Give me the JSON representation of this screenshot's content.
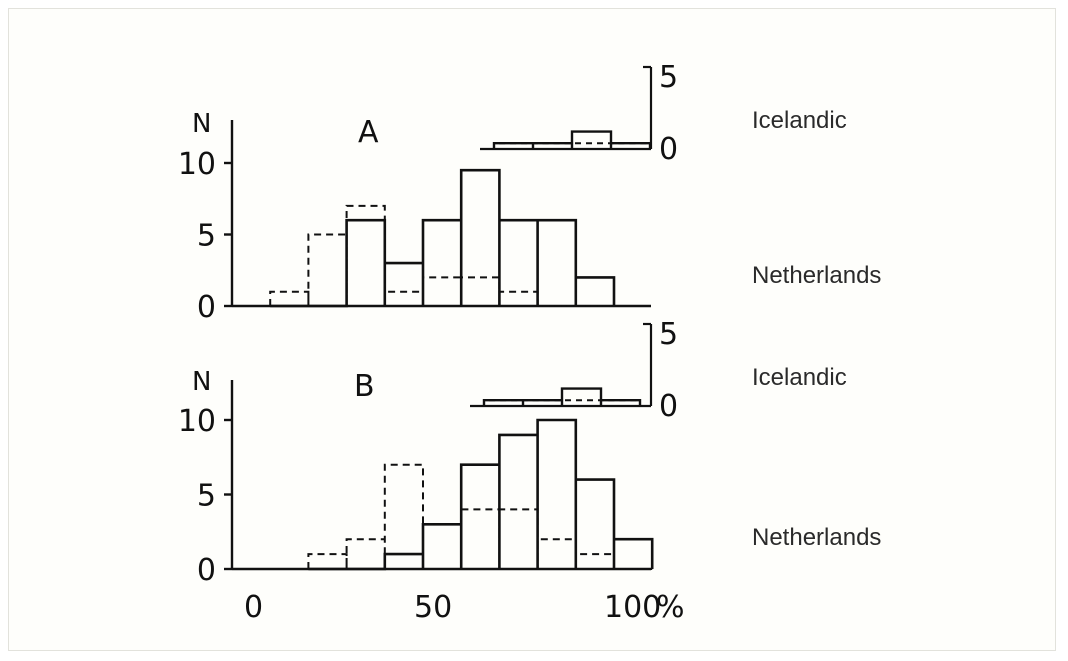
{
  "chart_data": [
    {
      "type": "histogram",
      "panel": "A",
      "y_axis_label": "N",
      "x_ticks": [],
      "x_unit": "",
      "bin_edges": [
        5,
        15,
        25,
        35,
        45,
        55,
        65,
        75,
        85,
        95
      ],
      "main": {
        "ylim": [
          0,
          12
        ],
        "y_ticks": [
          0,
          5,
          10
        ],
        "series": [
          {
            "style": "solid",
            "values": [
              0,
              0,
              6,
              3,
              6,
              9.5,
              6,
              6,
              2
            ]
          },
          {
            "style": "dashed",
            "values": [
              1,
              5,
              7,
              1,
              2,
              2,
              1,
              0,
              0
            ]
          }
        ]
      },
      "inset": {
        "label": "Icelandic",
        "y_ticks": [
          0,
          5
        ],
        "bin_edges": [
          65,
          75,
          85,
          95,
          105
        ],
        "series": [
          {
            "style": "solid",
            "values": [
              1,
              1,
              3,
              1
            ]
          },
          {
            "style": "dashed",
            "values": [
              1,
              1,
              1,
              1
            ]
          }
        ]
      },
      "main_label": "Netherlands"
    },
    {
      "type": "histogram",
      "panel": "B",
      "y_axis_label": "N",
      "x_ticks": [
        "0",
        "50",
        "100"
      ],
      "x_unit": "%",
      "bin_edges": [
        15,
        25,
        35,
        45,
        55,
        65,
        75,
        85,
        95,
        105
      ],
      "main": {
        "ylim": [
          0,
          12
        ],
        "y_ticks": [
          0,
          5,
          10
        ],
        "series": [
          {
            "style": "solid",
            "values": [
              0,
              0,
              1,
              3,
              7,
              9,
              10,
              6,
              2
            ]
          },
          {
            "style": "dashed",
            "values": [
              1,
              2,
              7,
              3,
              4,
              4,
              2,
              1,
              0
            ]
          }
        ]
      },
      "inset": {
        "label": "Icelandic",
        "y_ticks": [
          0,
          5
        ],
        "bin_edges": [
          65,
          75,
          85,
          95,
          105
        ],
        "series": [
          {
            "style": "solid",
            "values": [
              1,
              1,
              3,
              1
            ]
          },
          {
            "style": "dashed",
            "values": [
              1,
              1,
              1,
              1
            ]
          }
        ]
      },
      "main_label": "Netherlands"
    }
  ]
}
